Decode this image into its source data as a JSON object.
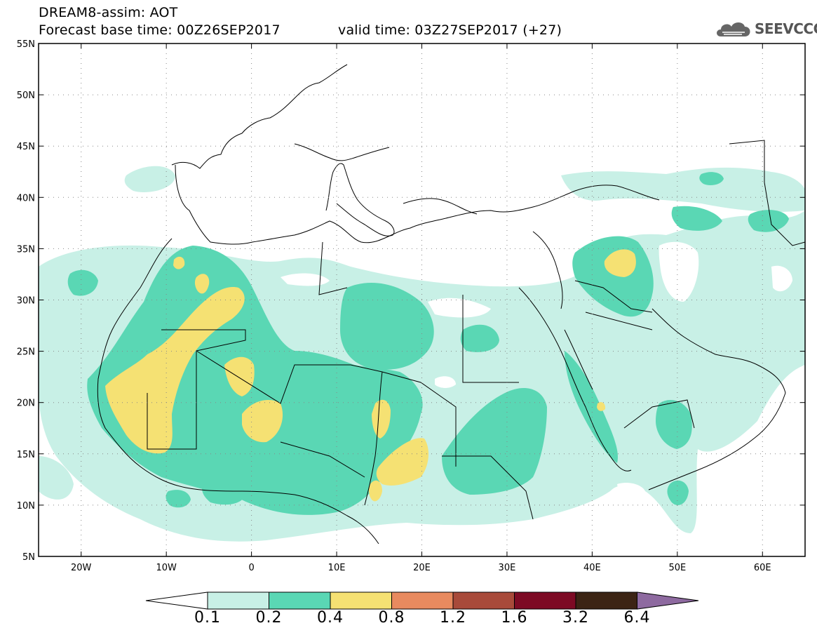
{
  "header": {
    "title": "DREAM8-assim: AOT",
    "base_time": "Forecast base time: 00Z26SEP2017",
    "valid_time": "valid time: 03Z27SEP2017 (+27)"
  },
  "logo": {
    "text": "SEEVCCC",
    "icon": "cloud-icon"
  },
  "map": {
    "lon_range": [
      -25,
      65
    ],
    "lat_range": [
      5,
      55
    ],
    "lat_ticks": [
      {
        "v": 55,
        "label": "55N"
      },
      {
        "v": 50,
        "label": "50N"
      },
      {
        "v": 45,
        "label": "45N"
      },
      {
        "v": 40,
        "label": "40N"
      },
      {
        "v": 35,
        "label": "35N"
      },
      {
        "v": 30,
        "label": "30N"
      },
      {
        "v": 25,
        "label": "25N"
      },
      {
        "v": 20,
        "label": "20N"
      },
      {
        "v": 15,
        "label": "15N"
      },
      {
        "v": 10,
        "label": "10N"
      },
      {
        "v": 5,
        "label": "5N"
      }
    ],
    "lon_ticks": [
      {
        "v": -20,
        "label": "20W"
      },
      {
        "v": -10,
        "label": "10W"
      },
      {
        "v": 0,
        "label": "0"
      },
      {
        "v": 10,
        "label": "10E"
      },
      {
        "v": 20,
        "label": "20E"
      },
      {
        "v": 30,
        "label": "30E"
      },
      {
        "v": 40,
        "label": "40E"
      },
      {
        "v": 50,
        "label": "50E"
      },
      {
        "v": 60,
        "label": "60E"
      }
    ],
    "grid": true
  },
  "colorbar": {
    "levels": [
      "0.1",
      "0.2",
      "0.4",
      "0.8",
      "1.2",
      "1.6",
      "3.2",
      "6.4"
    ],
    "colors": [
      "#ffffff",
      "#c8f0e6",
      "#5ad7b4",
      "#f5e173",
      "#e88a5f",
      "#a84a3a",
      "#7d0a24",
      "#3c2414",
      "#8e6aa0"
    ]
  }
}
